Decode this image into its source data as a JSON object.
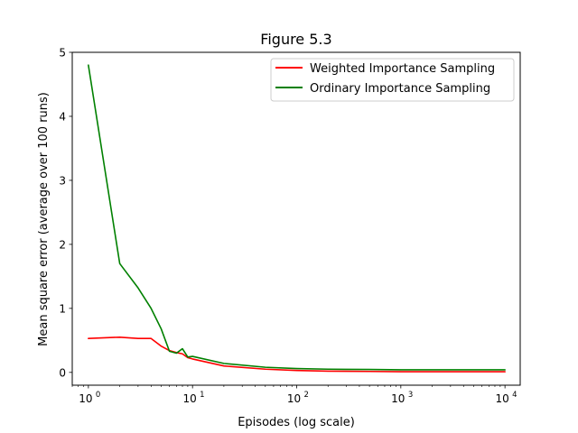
{
  "chart_data": {
    "type": "line",
    "title": "Figure 5.3",
    "xlabel": "Episodes (log scale)",
    "ylabel": "Mean square error (average over 100 runs)",
    "xscale": "log",
    "xlim": [
      0.7,
      14000
    ],
    "ylim": [
      -0.2,
      5.0
    ],
    "x_ticks": [
      1,
      10,
      100,
      1000,
      10000
    ],
    "x_tick_labels": [
      {
        "base": "10",
        "exp": "0"
      },
      {
        "base": "10",
        "exp": "1"
      },
      {
        "base": "10",
        "exp": "2"
      },
      {
        "base": "10",
        "exp": "3"
      },
      {
        "base": "10",
        "exp": "4"
      }
    ],
    "y_ticks": [
      0,
      1,
      2,
      3,
      4,
      5
    ],
    "y_tick_labels": [
      "0",
      "1",
      "2",
      "3",
      "4",
      "5"
    ],
    "grid": false,
    "legend_position": "upper-right",
    "series": [
      {
        "name": "Weighted Importance Sampling",
        "color": "#ff0000",
        "x": [
          1,
          2,
          3,
          4,
          5,
          6,
          7,
          8,
          9,
          10,
          20,
          50,
          100,
          200,
          500,
          1000,
          2000,
          5000,
          10000
        ],
        "y": [
          0.53,
          0.55,
          0.53,
          0.53,
          0.41,
          0.34,
          0.31,
          0.29,
          0.23,
          0.21,
          0.1,
          0.05,
          0.03,
          0.02,
          0.015,
          0.01,
          0.01,
          0.01,
          0.01
        ]
      },
      {
        "name": "Ordinary Importance Sampling",
        "color": "#008000",
        "x": [
          1,
          2,
          3,
          4,
          5,
          6,
          7,
          8,
          9,
          10,
          20,
          50,
          100,
          200,
          500,
          1000,
          2000,
          5000,
          10000
        ],
        "y": [
          4.8,
          1.7,
          1.32,
          1.0,
          0.68,
          0.33,
          0.3,
          0.37,
          0.24,
          0.25,
          0.14,
          0.08,
          0.06,
          0.05,
          0.045,
          0.04,
          0.04,
          0.04,
          0.04
        ]
      }
    ]
  }
}
